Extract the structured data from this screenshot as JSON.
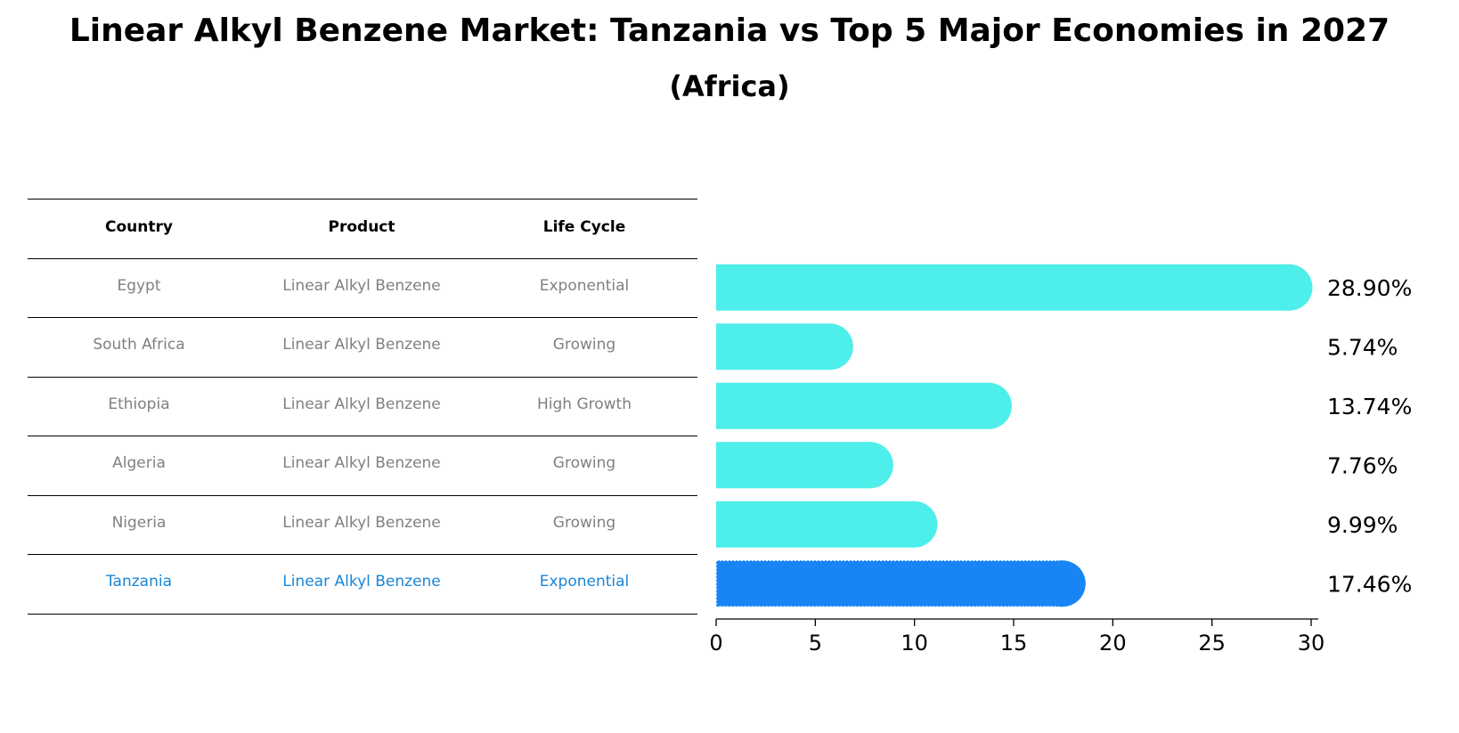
{
  "title": "Linear Alkyl Benzene Market: Tanzania vs Top 5 Major Economies in 2027",
  "subtitle": "(Africa)",
  "table": {
    "headers": [
      "Country",
      "Product",
      "Life Cycle"
    ],
    "rows": [
      [
        "Egypt",
        "Linear Alkyl Benzene",
        "Exponential"
      ],
      [
        "South Africa",
        "Linear Alkyl Benzene",
        "Growing"
      ],
      [
        "Ethiopia",
        "Linear Alkyl Benzene",
        "High Growth"
      ],
      [
        "Algeria",
        "Linear Alkyl Benzene",
        "Growing"
      ],
      [
        "Nigeria",
        "Linear Alkyl Benzene",
        "Growing"
      ],
      [
        "Tanzania",
        "Linear Alkyl Benzene",
        "Exponential"
      ]
    ],
    "highlight_row": 5
  },
  "colors": {
    "bar": "#4eeeea",
    "highlight": "#1985f5",
    "highlight_text": "#1a85d6",
    "muted_text": "#808080"
  },
  "chart_data": {
    "type": "bar",
    "orientation": "horizontal",
    "categories": [
      "Egypt",
      "South Africa",
      "Ethiopia",
      "Algeria",
      "Nigeria",
      "Tanzania"
    ],
    "values": [
      28.9,
      5.74,
      13.74,
      7.76,
      9.99,
      17.46
    ],
    "value_labels": [
      "28.90%",
      "5.74%",
      "13.74%",
      "7.76%",
      "9.99%",
      "17.46%"
    ],
    "highlight": "Tanzania",
    "xlim": [
      0,
      30
    ],
    "xticks": [
      0,
      5,
      10,
      15,
      20,
      25,
      30
    ],
    "grid": false
  }
}
